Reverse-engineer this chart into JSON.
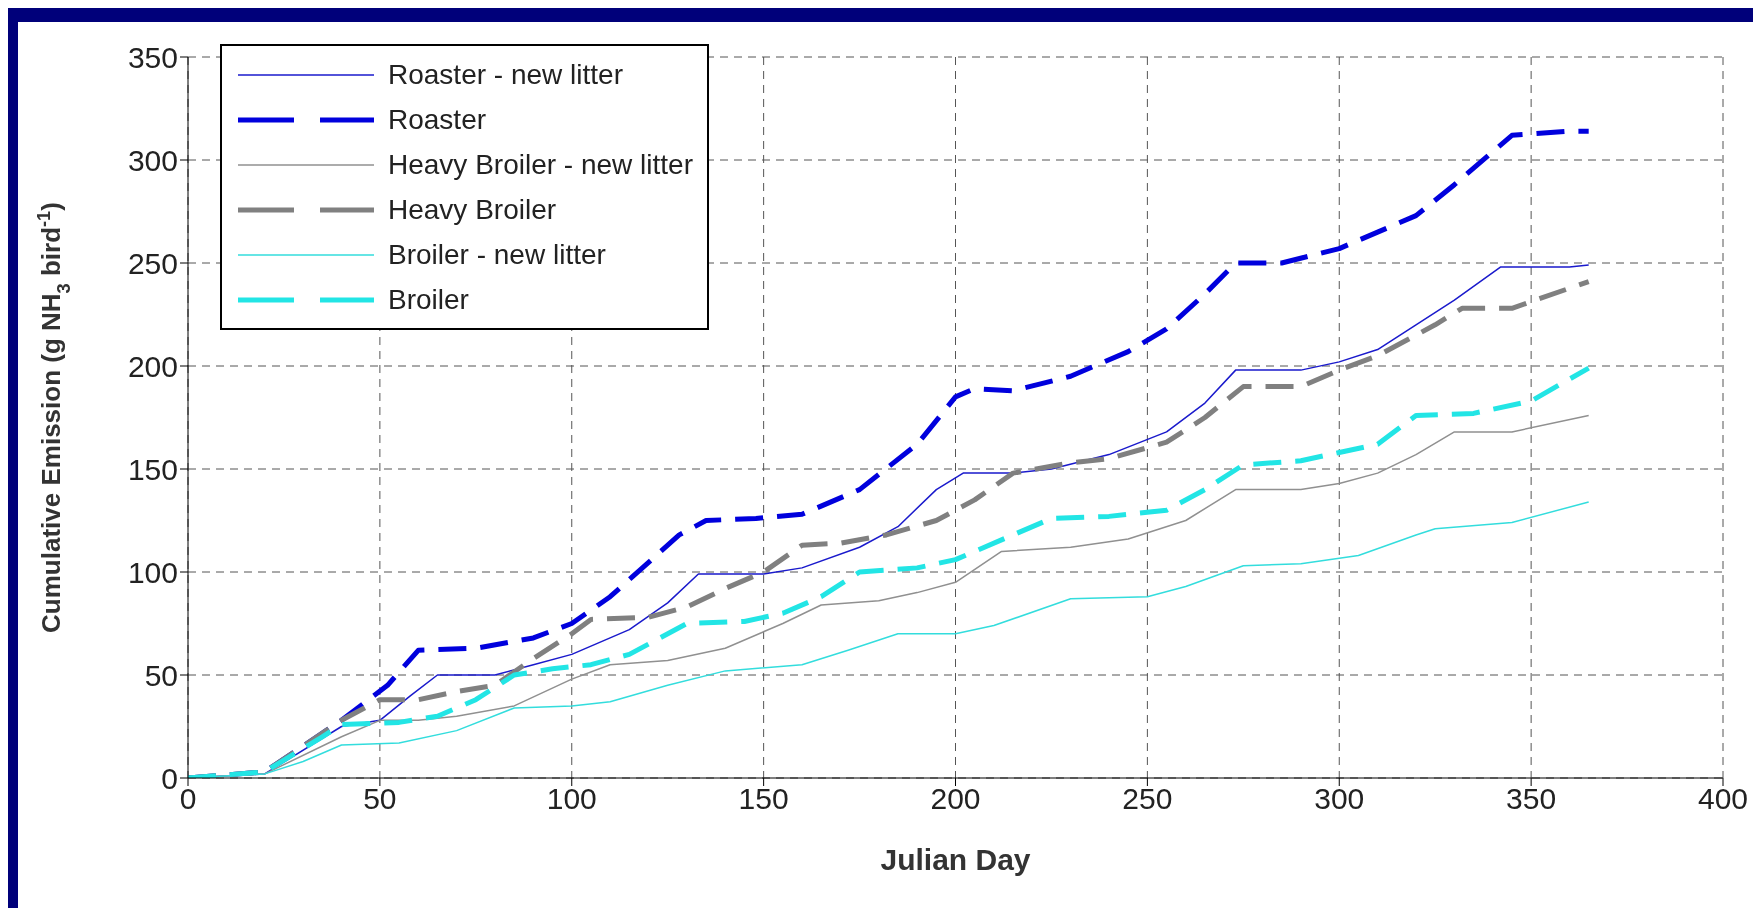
{
  "chart_data": {
    "type": "line",
    "xlabel": "Julian Day",
    "ylabel": "Cumulative Emission (g NH$_{3}$ bird$^{-1}$)",
    "xlim": [
      0,
      400
    ],
    "xticks": [
      0,
      50,
      100,
      150,
      200,
      250,
      300,
      350,
      400
    ],
    "ylim": [
      0,
      350
    ],
    "yticks": [
      0,
      50,
      100,
      150,
      200,
      250,
      300,
      350
    ],
    "grid": true,
    "legend": "top left",
    "marker": "none",
    "series": [
      {
        "name": "Roaster - new litter",
        "color": "#1a1acc",
        "line_style": "solid",
        "x": [
          0,
          20,
          40,
          50,
          58,
          65,
          80,
          90,
          100,
          115,
          125,
          133,
          150,
          160,
          175,
          185,
          195,
          202,
          215,
          225,
          240,
          255,
          265,
          273,
          290,
          300,
          310,
          320,
          330,
          342,
          360,
          365
        ],
        "values": [
          0,
          2,
          25,
          28,
          40,
          50,
          50,
          55,
          60,
          72,
          85,
          99,
          99,
          102,
          112,
          122,
          140,
          148,
          148,
          150,
          157,
          168,
          182,
          198,
          198,
          202,
          208,
          220,
          232,
          248,
          248,
          249
        ]
      },
      {
        "name": "Roaster",
        "color": "#0000dd",
        "line_style": "dashed",
        "x": [
          0,
          20,
          40,
          52,
          60,
          75,
          90,
          100,
          110,
          128,
          135,
          148,
          160,
          175,
          190,
          200,
          205,
          215,
          230,
          245,
          255,
          265,
          273,
          285,
          300,
          310,
          320,
          330,
          345,
          360,
          365
        ],
        "values": [
          0,
          3,
          28,
          45,
          62,
          63,
          68,
          75,
          88,
          118,
          125,
          126,
          128,
          140,
          162,
          185,
          189,
          188,
          195,
          207,
          218,
          235,
          250,
          250,
          257,
          265,
          273,
          288,
          312,
          314,
          314
        ]
      },
      {
        "name": "Heavy Broiler - new litter",
        "color": "#909090",
        "line_style": "solid",
        "x": [
          0,
          20,
          40,
          50,
          60,
          70,
          85,
          100,
          110,
          125,
          140,
          155,
          165,
          180,
          190,
          200,
          212,
          230,
          245,
          260,
          273,
          290,
          300,
          310,
          320,
          330,
          345,
          365
        ],
        "values": [
          0,
          2,
          20,
          28,
          28,
          30,
          35,
          48,
          55,
          57,
          63,
          75,
          84,
          86,
          90,
          95,
          110,
          112,
          116,
          125,
          140,
          140,
          143,
          148,
          157,
          168,
          168,
          176
        ]
      },
      {
        "name": "Heavy Broiler",
        "color": "#808080",
        "line_style": "dashed",
        "x": [
          0,
          20,
          40,
          50,
          60,
          70,
          80,
          90,
          100,
          105,
          120,
          130,
          140,
          150,
          160,
          170,
          182,
          195,
          205,
          215,
          230,
          240,
          255,
          265,
          275,
          290,
          300,
          310,
          325,
          332,
          345,
          365
        ],
        "values": [
          0,
          3,
          28,
          38,
          38,
          42,
          45,
          58,
          70,
          77,
          78,
          83,
          92,
          100,
          113,
          114,
          118,
          125,
          135,
          148,
          153,
          155,
          163,
          175,
          190,
          190,
          198,
          205,
          220,
          228,
          228,
          241
        ]
      },
      {
        "name": "Broiler - new litter",
        "color": "#33dddd",
        "line_style": "solid",
        "x": [
          0,
          20,
          30,
          40,
          55,
          70,
          85,
          100,
          110,
          125,
          140,
          160,
          172,
          185,
          200,
          210,
          230,
          250,
          260,
          275,
          290,
          305,
          320,
          325,
          345,
          365
        ],
        "values": [
          0,
          2,
          8,
          16,
          17,
          23,
          34,
          35,
          37,
          45,
          52,
          55,
          62,
          70,
          70,
          74,
          87,
          88,
          93,
          103,
          104,
          108,
          118,
          121,
          124,
          134
        ]
      },
      {
        "name": "Broiler",
        "color": "#22e5e5",
        "line_style": "dashed",
        "x": [
          0,
          20,
          35,
          40,
          55,
          65,
          75,
          85,
          95,
          105,
          115,
          130,
          145,
          155,
          165,
          175,
          190,
          200,
          215,
          225,
          240,
          255,
          265,
          275,
          290,
          300,
          310,
          320,
          335,
          350,
          365
        ],
        "values": [
          0,
          3,
          20,
          26,
          27,
          30,
          38,
          50,
          53,
          55,
          60,
          75,
          76,
          80,
          88,
          100,
          102,
          106,
          118,
          126,
          127,
          130,
          140,
          152,
          154,
          158,
          162,
          176,
          177,
          183,
          199
        ]
      }
    ]
  }
}
